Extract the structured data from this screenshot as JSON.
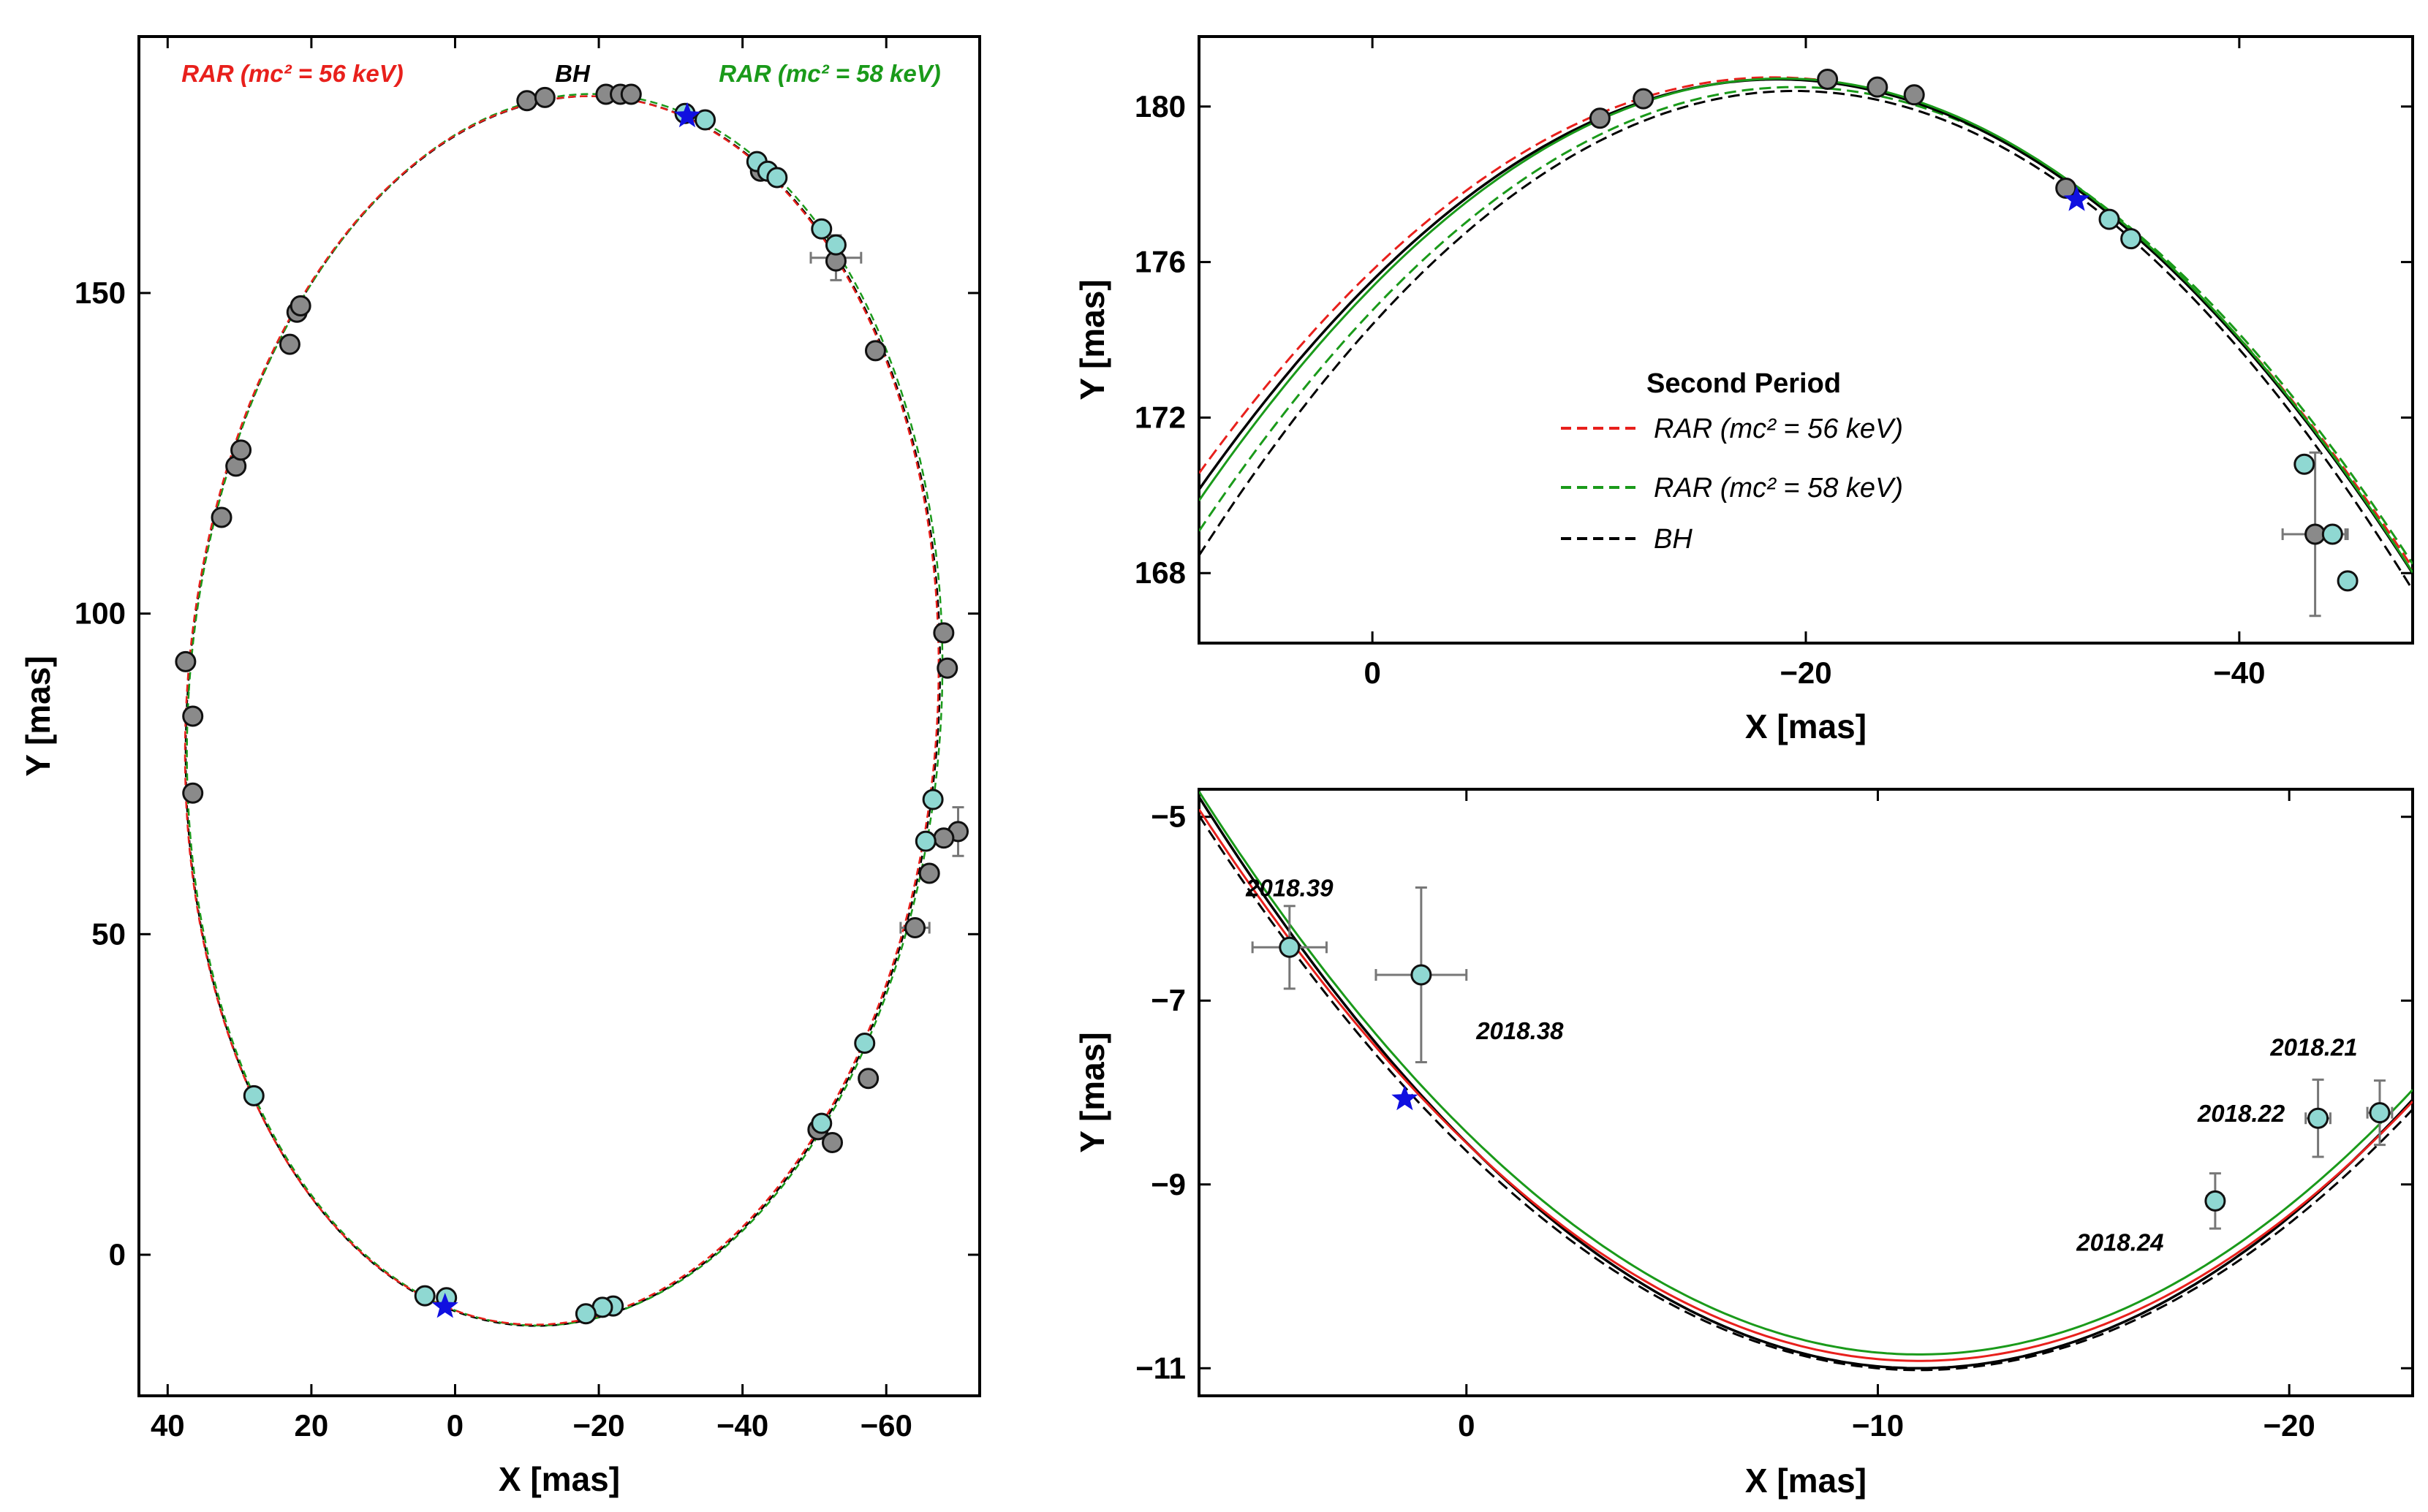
{
  "colors": {
    "rar56": "#e8201c",
    "rar58": "#1a9a1a",
    "bh": "#000000",
    "star": "#1010e0",
    "grey_point": "#8a8a8a",
    "cyan_point": "#8fd8d2",
    "errorbar": "#777777"
  },
  "chart_data": [
    {
      "id": "full-orbit",
      "type": "scatter",
      "xlabel": "X [mas]",
      "ylabel": "Y [mas]",
      "xlim": [
        44,
        -73
      ],
      "ylim": [
        -22,
        190
      ],
      "xticks": [
        40,
        20,
        0,
        -20,
        -40,
        -60
      ],
      "xtick_labels": [
        "40",
        "20",
        "0",
        "−20",
        "−40",
        "−60"
      ],
      "yticks": [
        0,
        50,
        100,
        150
      ],
      "ytick_labels": [
        "0",
        "50",
        "100",
        "150"
      ],
      "top_labels": [
        {
          "text": "RAR (mc² = 56 keV)",
          "color": "rar56",
          "x": 29
        },
        {
          "text": "BH",
          "color": "bh",
          "x": -17
        },
        {
          "text": "RAR (mc² = 58 keV)",
          "color": "rar58",
          "x": -57
        }
      ],
      "orbit": {
        "cx": -15,
        "cy": 84.8,
        "a": 52.3,
        "b": 96,
        "tilt_deg": 3.2
      },
      "grey_points": [
        [
          37.5,
          92.5
        ],
        [
          36.5,
          84
        ],
        [
          36.5,
          72
        ],
        [
          32.5,
          115
        ],
        [
          30.5,
          123
        ],
        [
          29.8,
          125.5
        ],
        [
          23,
          142
        ],
        [
          22,
          147
        ],
        [
          21.5,
          148
        ],
        [
          -10,
          180
        ],
        [
          -12.5,
          180.5
        ],
        [
          -21,
          181
        ],
        [
          -23,
          181
        ],
        [
          -24.5,
          181
        ],
        [
          -42.5,
          169
        ],
        [
          -53,
          155
        ],
        [
          -58.5,
          141
        ],
        [
          -68,
          97
        ],
        [
          -68.5,
          91.5
        ],
        [
          -70,
          66
        ],
        [
          -68,
          65
        ],
        [
          -66,
          59.5
        ],
        [
          -64,
          51
        ],
        [
          -57.5,
          27.5
        ],
        [
          -50.5,
          19.5
        ],
        [
          -52.5,
          17.5
        ]
      ],
      "cyan_points": [
        [
          -32,
          178
        ],
        [
          -34.8,
          177
        ],
        [
          -42,
          170.5
        ],
        [
          -43.5,
          169
        ],
        [
          -44.8,
          168
        ],
        [
          -51,
          160
        ],
        [
          -53,
          157.5
        ],
        [
          -66.5,
          71
        ],
        [
          -65.5,
          64.5
        ],
        [
          -57,
          33
        ],
        [
          -51,
          20.5
        ],
        [
          -22,
          -8
        ],
        [
          -20.5,
          -8.2
        ],
        [
          -18.2,
          -9.2
        ],
        [
          4.2,
          -6.4
        ],
        [
          1.2,
          -6.7
        ],
        [
          28,
          24.8
        ]
      ],
      "stars": [
        [
          -32.3,
          177.6
        ],
        [
          1.4,
          -8.1
        ]
      ],
      "error_points": [
        [
          -53,
          155.5,
          3.5,
          3.5
        ],
        [
          -70,
          66,
          1,
          3.8
        ],
        [
          -64,
          51,
          2,
          0.8
        ]
      ]
    },
    {
      "id": "second-period",
      "type": "line",
      "xlabel": "X [mas]",
      "ylabel": "Y [mas]",
      "xlim": [
        8,
        -48
      ],
      "ylim": [
        166.2,
        181.8
      ],
      "xticks": [
        0,
        -20,
        -40
      ],
      "xtick_labels": [
        "0",
        "−20",
        "−40"
      ],
      "yticks": [
        168,
        172,
        176,
        180
      ],
      "ytick_labels": [
        "168",
        "172",
        "176",
        "180"
      ],
      "legend": {
        "title": "Second Period",
        "entries": [
          {
            "label": "RAR (mc² = 56 keV)",
            "color": "rar56"
          },
          {
            "label": "RAR (mc² = 58 keV)",
            "color": "rar58"
          },
          {
            "label": "BH",
            "color": "bh"
          }
        ]
      },
      "grey_points": [
        [
          -10.5,
          179.7
        ],
        [
          -12.5,
          180.2
        ],
        [
          -21,
          180.7
        ],
        [
          -23.3,
          180.5
        ],
        [
          -25,
          180.3
        ],
        [
          -32,
          177.9
        ],
        [
          -43.5,
          169
        ]
      ],
      "cyan_points": [
        [
          -34,
          177.1
        ],
        [
          -35,
          176.6
        ],
        [
          -43,
          170.8
        ],
        [
          -44.3,
          169
        ],
        [
          -45,
          167.8
        ]
      ],
      "stars": [
        [
          -32.5,
          177.6
        ]
      ],
      "error_points": [
        [
          -43.5,
          169,
          1.5,
          2.1
        ],
        [
          -44.3,
          169,
          0.6,
          0
        ]
      ]
    },
    {
      "id": "pericenter",
      "type": "line",
      "xlabel": "X [mas]",
      "ylabel": "Y [mas]",
      "xlim": [
        6.5,
        -23
      ],
      "ylim": [
        -11.3,
        -4.7
      ],
      "xticks": [
        0,
        -10,
        -20
      ],
      "xtick_labels": [
        "0",
        "−10",
        "−20"
      ],
      "yticks": [
        -11,
        -9,
        -7,
        -5
      ],
      "ytick_labels": [
        "−11",
        "−9",
        "−7",
        "−5"
      ],
      "points": [
        {
          "x": 4.3,
          "y": -6.42,
          "ex": 0.9,
          "ey": 0.45,
          "label": "2018.39"
        },
        {
          "x": 1.1,
          "y": -6.72,
          "ex": 1.1,
          "ey": 0.95,
          "label": "2018.38"
        },
        {
          "x": -18.2,
          "y": -9.18,
          "ex": 0.2,
          "ey": 0.3,
          "label": "2018.24"
        },
        {
          "x": -20.7,
          "y": -8.28,
          "ex": 0.3,
          "ey": 0.42,
          "label": "2018.22"
        },
        {
          "x": -22.2,
          "y": -8.22,
          "ex": 0.3,
          "ey": 0.35,
          "label": "2018.21"
        }
      ],
      "stars": [
        [
          1.5,
          -8.07
        ]
      ]
    }
  ]
}
